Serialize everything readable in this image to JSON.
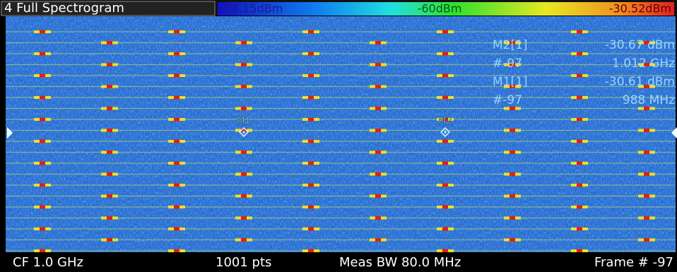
{
  "header": {
    "title": "4 Full Spectrogram",
    "colorbar": {
      "min_label": "-88.15dBm",
      "mid_label": "-60dBm",
      "max_label": "-30.52dBm"
    }
  },
  "marker_table": {
    "rows": [
      [
        "M2[1]",
        "-30.67 dBm"
      ],
      [
        "#-97",
        "1.012 GHz"
      ],
      [
        "M1[1]",
        "-30.61 dBm"
      ],
      [
        "#-97",
        "988 MHz"
      ]
    ]
  },
  "markers": [
    {
      "label": "M1"
    },
    {
      "label": "M2"
    }
  ],
  "footer": {
    "center_frequency": "CF 1.0 GHz",
    "points": "1001 pts",
    "bandwidth": "Meas BW 80.0 MHz",
    "frame": "Frame # -97"
  }
}
